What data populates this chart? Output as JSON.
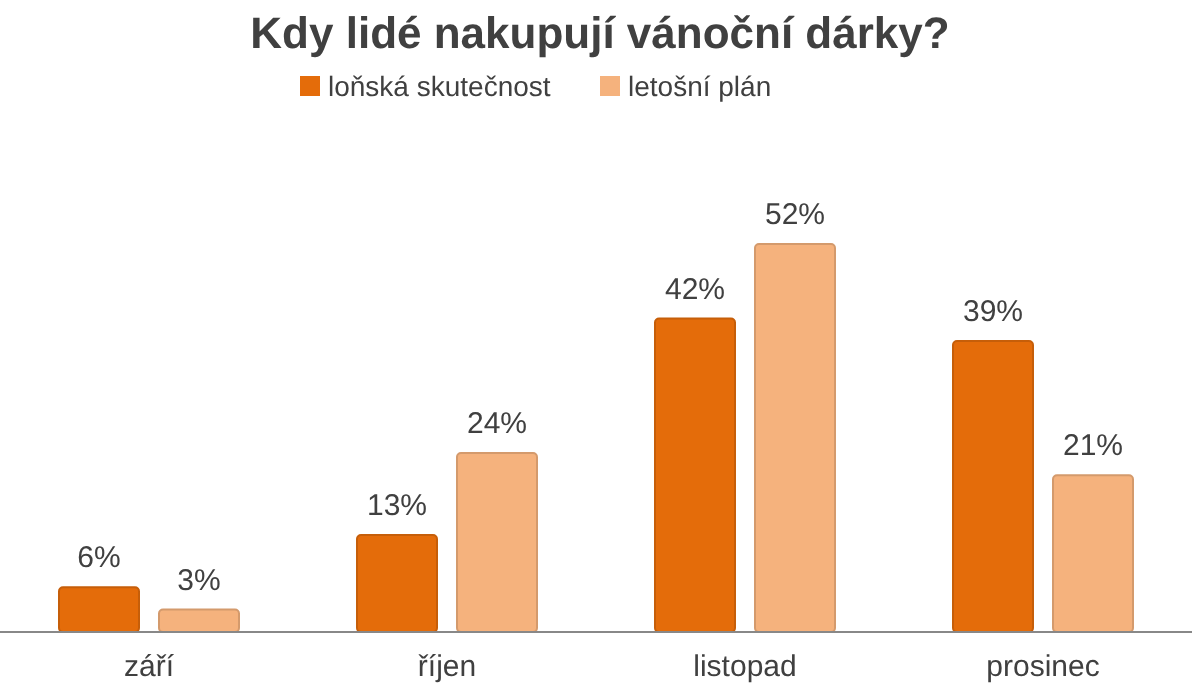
{
  "chart_data": {
    "type": "bar",
    "title": "Kdy lidé nakupují vánoční dárky?",
    "categories": [
      "září",
      "říjen",
      "listopad",
      "prosinec"
    ],
    "series": [
      {
        "name": "loňská skutečnost",
        "color": "#e46c0a",
        "values": [
          6,
          13,
          42,
          39
        ],
        "value_labels": [
          "6%",
          "13%",
          "42%",
          "39%"
        ]
      },
      {
        "name": "letošní plán",
        "color": "#f5b27d",
        "values": [
          3,
          24,
          52,
          21
        ],
        "value_labels": [
          "3%",
          "24%",
          "52%",
          "21%"
        ]
      }
    ],
    "legend": "top",
    "grid": false
  }
}
